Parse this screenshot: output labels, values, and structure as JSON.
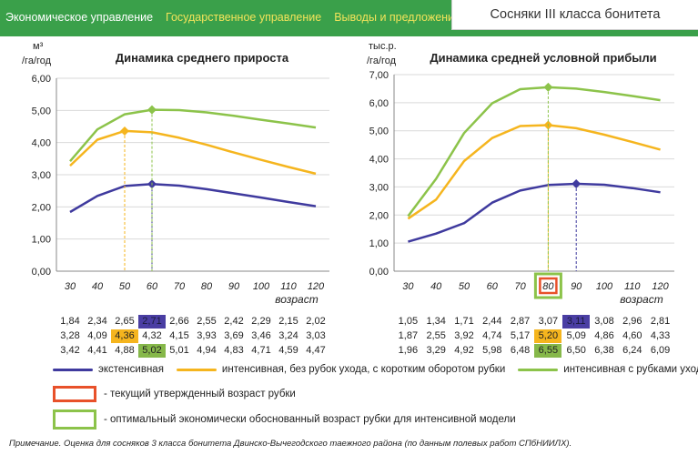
{
  "header": {
    "nav": [
      {
        "label": "Экономическое управление",
        "accent": false
      },
      {
        "label": "Государственное управление",
        "accent": true
      },
      {
        "label": "Выводы и предложения",
        "accent": true
      }
    ],
    "title": "Сосняки III класса бонитета"
  },
  "colors": {
    "blue": "#3f3a9e",
    "orange": "#f5b51e",
    "green": "#8cc34a",
    "red_frame": "#e8512a",
    "green_frame": "#8cc34a"
  },
  "chart_data": [
    {
      "type": "line",
      "title": "Динамика среднего прироста",
      "ylabel": "м³ /га/год",
      "xlabel": "возраст",
      "x": [
        30,
        40,
        50,
        60,
        70,
        80,
        90,
        100,
        110,
        120
      ],
      "ylim": [
        0,
        6
      ],
      "yticks": [
        "0,00",
        "1,00",
        "2,00",
        "3,00",
        "4,00",
        "5,00",
        "6,00"
      ],
      "series": [
        {
          "name": "экстенсивная",
          "color": "#3f3a9e",
          "values": [
            1.84,
            2.34,
            2.65,
            2.71,
            2.66,
            2.55,
            2.42,
            2.29,
            2.15,
            2.02
          ],
          "marker_x": 60
        },
        {
          "name": "интенсивная, без рубок ухода, с коротким оборотом рубки",
          "color": "#f5b51e",
          "values": [
            3.28,
            4.09,
            4.36,
            4.32,
            4.15,
            3.93,
            3.69,
            3.46,
            3.24,
            3.03
          ],
          "marker_x": 50
        },
        {
          "name": "интенсивная с рубками ухода",
          "color": "#8cc34a",
          "values": [
            3.42,
            4.41,
            4.88,
            5.02,
            5.01,
            4.94,
            4.83,
            4.71,
            4.59,
            4.47
          ],
          "marker_x": 60
        }
      ],
      "table": {
        "rows": [
          [
            "1,84",
            "2,34",
            "2,65",
            "2,71",
            "2,66",
            "2,55",
            "2,42",
            "2,29",
            "2,15",
            "2,02"
          ],
          [
            "3,28",
            "4,09",
            "4,36",
            "4,32",
            "4,15",
            "3,93",
            "3,69",
            "3,46",
            "3,24",
            "3,03"
          ],
          [
            "3,42",
            "4,41",
            "4,88",
            "5,02",
            "5,01",
            "4,94",
            "4,83",
            "4,71",
            "4,59",
            "4,47"
          ]
        ],
        "highlight": [
          3,
          2,
          3
        ]
      },
      "highlighted_x": null
    },
    {
      "type": "line",
      "title": "Динамика средней условной прибыли",
      "ylabel": "тыс.р. /га/год",
      "xlabel": "возраст",
      "x": [
        30,
        40,
        50,
        60,
        70,
        80,
        90,
        100,
        110,
        120
      ],
      "ylim": [
        0,
        7
      ],
      "yticks": [
        "0,00",
        "1,00",
        "2,00",
        "3,00",
        "4,00",
        "5,00",
        "6,00",
        "7,00"
      ],
      "series": [
        {
          "name": "экстенсивная",
          "color": "#3f3a9e",
          "values": [
            1.05,
            1.34,
            1.71,
            2.44,
            2.87,
            3.07,
            3.11,
            3.08,
            2.96,
            2.81
          ],
          "marker_x": 90
        },
        {
          "name": "интенсивная, без рубок ухода, с коротким оборотом рубки",
          "color": "#f5b51e",
          "values": [
            1.87,
            2.55,
            3.92,
            4.74,
            5.17,
            5.2,
            5.09,
            4.86,
            4.6,
            4.33
          ],
          "marker_x": 80
        },
        {
          "name": "интенсивная с рубками ухода",
          "color": "#8cc34a",
          "values": [
            1.96,
            3.29,
            4.92,
            5.98,
            6.48,
            6.55,
            6.5,
            6.38,
            6.24,
            6.09
          ],
          "marker_x": 80
        }
      ],
      "table": {
        "rows": [
          [
            "1,05",
            "1,34",
            "1,71",
            "2,44",
            "2,87",
            "3,07",
            "3,11",
            "3,08",
            "2,96",
            "2,81"
          ],
          [
            "1,87",
            "2,55",
            "3,92",
            "4,74",
            "5,17",
            "5,20",
            "5,09",
            "4,86",
            "4,60",
            "4,33"
          ],
          [
            "1,96",
            "3,29",
            "4,92",
            "5,98",
            "6,48",
            "6,55",
            "6,50",
            "6,38",
            "6,24",
            "6,09"
          ]
        ],
        "highlight": [
          6,
          5,
          5
        ]
      },
      "highlighted_x": "80"
    }
  ],
  "legend": {
    "items": [
      {
        "label": "экстенсивная",
        "color": "#3f3a9e"
      },
      {
        "label": "интенсивная, без рубок ухода, с коротким оборотом рубки",
        "color": "#f5b51e"
      },
      {
        "label": "интенсивная с рубками ухода",
        "color": "#8cc34a"
      }
    ],
    "current_age_label": "- текущий утвержденный возраст рубки",
    "optimal_age_label": "- оптимальный экономически обоснованный возраст рубки для интенсивной модели"
  },
  "note": "Примечание. Оценка для сосняков 3 класса бонитета Двинско-Вычегодского таежного района (по данным полевых работ СПбНИИЛХ)."
}
